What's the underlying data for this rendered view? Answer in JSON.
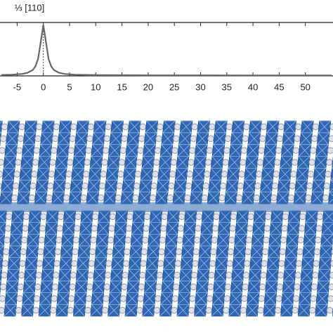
{
  "chart_data": {
    "type": "line",
    "annotation": "⅓ [110]",
    "x": [
      -8,
      -6,
      -4,
      -3,
      -2,
      -1.5,
      -1,
      -0.5,
      0,
      0.5,
      1,
      1.5,
      2,
      3,
      4,
      6,
      10,
      20,
      30,
      40,
      50,
      55
    ],
    "series": [
      {
        "color": "#666666",
        "values": [
          0.0076,
          0.0134,
          0.0297,
          0.052,
          0.109,
          0.179,
          0.329,
          0.662,
          1,
          0.662,
          0.329,
          0.179,
          0.109,
          0.052,
          0.0297,
          0.0134,
          0.0049,
          0.0012,
          0.0005,
          0.0003,
          0.0002,
          0.0002
        ]
      }
    ],
    "vline": 0,
    "xlim": [
      -8,
      55
    ],
    "ylim": [
      -0.01,
      1.05
    ],
    "xticks": [
      -5,
      0,
      5,
      10,
      15,
      20,
      25,
      30,
      35,
      40,
      45,
      50
    ]
  }
}
